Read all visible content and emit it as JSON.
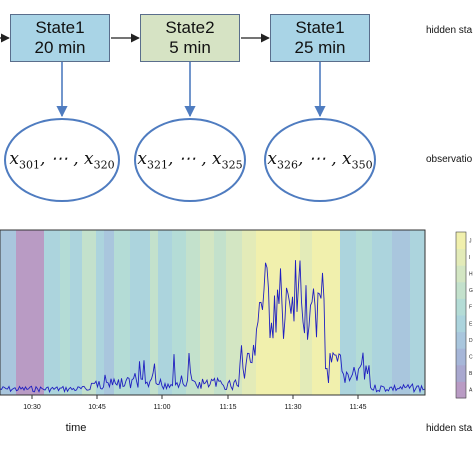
{
  "hmm": {
    "states": [
      {
        "name": "State1",
        "duration": "20 min",
        "color": "#a9d4e6"
      },
      {
        "name": "State2",
        "duration": "5 min",
        "color": "#d6e3c4"
      },
      {
        "name": "State1",
        "duration": "25 min",
        "color": "#a9d4e6"
      }
    ],
    "observations": [
      {
        "first": "301",
        "last": "320"
      },
      {
        "first": "321",
        "last": "325"
      },
      {
        "first": "326",
        "last": "350"
      }
    ],
    "hidden_label": "hidden sta",
    "observation_label": "observatio",
    "arrow_color": "#4f7cc0"
  },
  "chart_data": {
    "type": "area",
    "xlabel": "time",
    "ylabel": "",
    "x_tick_labels": [
      "10:30",
      "10:45",
      "11:00",
      "11:15",
      "11:30",
      "11:45"
    ],
    "colorbar_labels": [
      "A",
      "B",
      "C",
      "D",
      "E",
      "F",
      "G",
      "H",
      "I",
      "J"
    ],
    "colorbar_colors": [
      "#b99bc4",
      "#a9a8cf",
      "#a6b6d8",
      "#a9c6dd",
      "#acd4dd",
      "#b4dcd6",
      "#c3e1cc",
      "#d3e6c3",
      "#e3ebb8",
      "#f1f0ad"
    ],
    "bottom_right_label": "hidden sta",
    "line_color": "#2020c0",
    "legend": "right"
  }
}
